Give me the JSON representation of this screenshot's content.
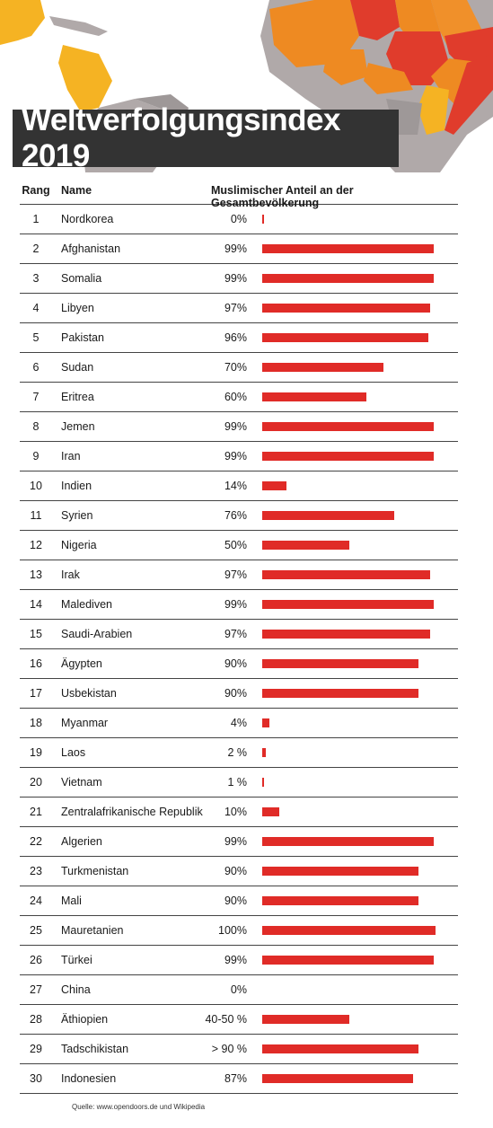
{
  "title": "Weltverfolgungsindex 2019",
  "headers": {
    "rank": "Rang",
    "name": "Name",
    "share": "Muslimischer Anteil an der Gesamtbevölkerung"
  },
  "source": "Quelle: www.opendoors.de und Wikipedia",
  "colors": {
    "bar": "#e02b27",
    "title_bg": "#333333"
  },
  "chart_data": {
    "type": "bar",
    "orientation": "horizontal",
    "title": "Weltverfolgungsindex 2019",
    "ylabel": "Muslimischer Anteil an der Gesamtbevölkerung",
    "xlim": [
      0,
      100
    ],
    "rows": [
      {
        "rank": "1",
        "name": "Nordkorea",
        "label": "0%",
        "value": 0.5
      },
      {
        "rank": "2",
        "name": "Afghanistan",
        "label": "99%",
        "value": 99
      },
      {
        "rank": "3",
        "name": "Somalia",
        "label": "99%",
        "value": 99
      },
      {
        "rank": "4",
        "name": "Libyen",
        "label": "97%",
        "value": 97
      },
      {
        "rank": "5",
        "name": "Pakistan",
        "label": "96%",
        "value": 96
      },
      {
        "rank": "6",
        "name": "Sudan",
        "label": "70%",
        "value": 70
      },
      {
        "rank": "7",
        "name": "Eritrea",
        "label": "60%",
        "value": 60
      },
      {
        "rank": "8",
        "name": "Jemen",
        "label": "99%",
        "value": 99
      },
      {
        "rank": "9",
        "name": "Iran",
        "label": "99%",
        "value": 99
      },
      {
        "rank": "10",
        "name": "Indien",
        "label": "14%",
        "value": 14
      },
      {
        "rank": "11",
        "name": "Syrien",
        "label": "76%",
        "value": 76
      },
      {
        "rank": "12",
        "name": "Nigeria",
        "label": "50%",
        "value": 50
      },
      {
        "rank": "13",
        "name": "Irak",
        "label": "97%",
        "value": 97
      },
      {
        "rank": "14",
        "name": "Malediven",
        "label": "99%",
        "value": 99
      },
      {
        "rank": "15",
        "name": "Saudi-Arabien",
        "label": "97%",
        "value": 97
      },
      {
        "rank": "16",
        "name": "Ägypten",
        "label": "90%",
        "value": 90
      },
      {
        "rank": "17",
        "name": "Usbekistan",
        "label": "90%",
        "value": 90
      },
      {
        "rank": "18",
        "name": "Myanmar",
        "label": "4%",
        "value": 4
      },
      {
        "rank": "19",
        "name": "Laos",
        "label": "2 %",
        "value": 2
      },
      {
        "rank": "20",
        "name": "Vietnam",
        "label": "1 %",
        "value": 1
      },
      {
        "rank": "21",
        "name": "Zentralafrikanische Republik",
        "label": "10%",
        "value": 10
      },
      {
        "rank": "22",
        "name": "Algerien",
        "label": "99%",
        "value": 99
      },
      {
        "rank": "23",
        "name": "Turkmenistan",
        "label": "90%",
        "value": 90
      },
      {
        "rank": "24",
        "name": "Mali",
        "label": "90%",
        "value": 90
      },
      {
        "rank": "25",
        "name": "Mauretanien",
        "label": "100%",
        "value": 100
      },
      {
        "rank": "26",
        "name": "Türkei",
        "label": "99%",
        "value": 99
      },
      {
        "rank": "27",
        "name": "China",
        "label": "0%",
        "value": 0
      },
      {
        "rank": "28",
        "name": "Äthiopien",
        "label": "40-50 %",
        "value": 50
      },
      {
        "rank": "29",
        "name": "Tadschikistan",
        "label": "> 90 %",
        "value": 90
      },
      {
        "rank": "30",
        "name": "Indonesien",
        "label": "87%",
        "value": 87
      }
    ]
  }
}
